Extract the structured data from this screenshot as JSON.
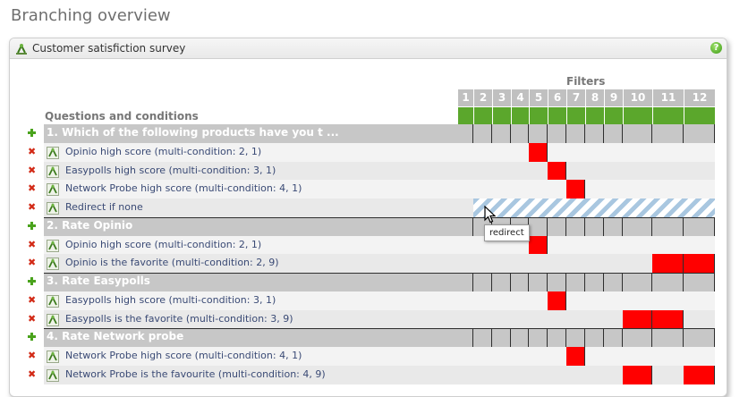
{
  "page": {
    "title": "Branching overview"
  },
  "panel": {
    "title": "Customer satisfiction survey",
    "help_icon": "question-circle-icon",
    "help_glyph": "?"
  },
  "grid": {
    "filters_title": "Filters",
    "questions_header": "Questions and conditions",
    "columns": [
      "1",
      "2",
      "3",
      "4",
      "5",
      "6",
      "7",
      "8",
      "9",
      "10",
      "11",
      "12"
    ],
    "filter_color": "#5ba72c",
    "active_color": "#ff0000"
  },
  "rows": [
    {
      "type": "question",
      "label": "1. Which of the following products have you t ...",
      "icon": "add-icon"
    },
    {
      "type": "condition",
      "label": "Opinio high score (multi-condition: 2, 1)",
      "active": [
        5
      ],
      "icon": "delete-icon"
    },
    {
      "type": "condition",
      "label": "Easypolls high score (multi-condition: 3, 1)",
      "active": [
        6
      ],
      "icon": "delete-icon"
    },
    {
      "type": "condition",
      "label": "Network Probe high score (multi-condition: 4, 1)",
      "active": [
        7
      ],
      "icon": "delete-icon"
    },
    {
      "type": "condition",
      "label": "Redirect if none",
      "active": [],
      "redirect": true,
      "icon": "delete-icon"
    },
    {
      "type": "question",
      "label": "2. Rate Opinio",
      "icon": "add-icon"
    },
    {
      "type": "condition",
      "label": "Opinio high score (multi-condition: 2, 1)",
      "active": [
        5
      ],
      "icon": "delete-icon"
    },
    {
      "type": "condition",
      "label": "Opinio is the favorite (multi-condition: 2, 9)",
      "active": [
        11,
        12
      ],
      "icon": "delete-icon"
    },
    {
      "type": "question",
      "label": "3. Rate Easypolls",
      "icon": "add-icon"
    },
    {
      "type": "condition",
      "label": "Easypolls high score (multi-condition: 3, 1)",
      "active": [
        6
      ],
      "icon": "delete-icon"
    },
    {
      "type": "condition",
      "label": "Easypolls is the favorite (multi-condition: 3, 9)",
      "active": [
        10,
        11
      ],
      "icon": "delete-icon"
    },
    {
      "type": "question",
      "label": "4. Rate Network probe",
      "icon": "add-icon"
    },
    {
      "type": "condition",
      "label": "Network Probe high score (multi-condition: 4, 1)",
      "active": [
        7
      ],
      "icon": "delete-icon"
    },
    {
      "type": "condition",
      "label": "Network Probe is the favourite (multi-condition: 4, 9)",
      "active": [
        10,
        12
      ],
      "icon": "delete-icon"
    }
  ],
  "tooltip": {
    "text": "redirect"
  }
}
